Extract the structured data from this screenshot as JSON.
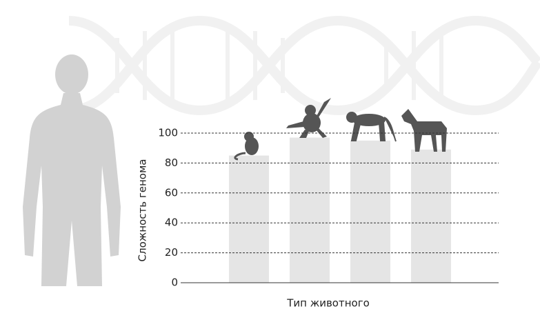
{
  "chart_data": {
    "type": "bar",
    "xlabel": "Тип животного",
    "ylabel": "Сложность генома",
    "categories": [
      null,
      null,
      null,
      null
    ],
    "values": [
      85,
      97,
      95,
      89
    ],
    "color": "#e5e5e5",
    "ylim": [
      0,
      100
    ],
    "yticks": [
      0,
      20,
      40,
      60,
      80,
      100
    ],
    "grid": true
  }
}
